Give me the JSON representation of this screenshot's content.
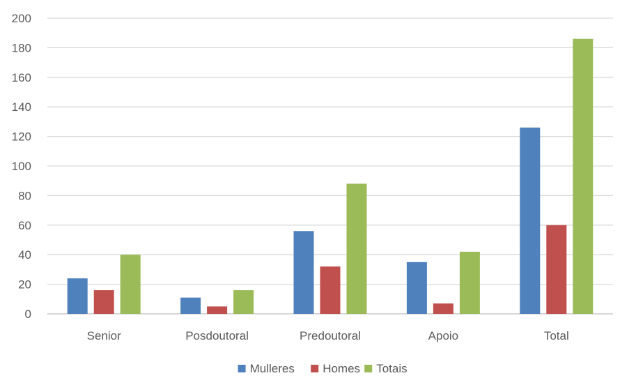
{
  "chart_data": {
    "type": "bar",
    "title": "",
    "xlabel": "",
    "ylabel": "",
    "categories": [
      "Senior",
      "Posdoutoral",
      "Predoutoral",
      "Apoio",
      "Total"
    ],
    "series": [
      {
        "name": "Mulleres",
        "color": "#4f81bd",
        "values": [
          24,
          11,
          56,
          35,
          126
        ]
      },
      {
        "name": "Homes",
        "color": "#c0504d",
        "values": [
          16,
          5,
          32,
          7,
          60
        ]
      },
      {
        "name": "Totais",
        "color": "#9bbb59",
        "values": [
          40,
          16,
          88,
          42,
          186
        ]
      }
    ],
    "ylim": [
      0,
      200
    ],
    "yticks": [
      0,
      20,
      40,
      60,
      80,
      100,
      120,
      140,
      160,
      180,
      200
    ],
    "grid": true,
    "legend_position": "bottom"
  },
  "colors": {
    "grid": "#d9d9d9",
    "axis": "#bfbfbf",
    "text": "#595959"
  }
}
